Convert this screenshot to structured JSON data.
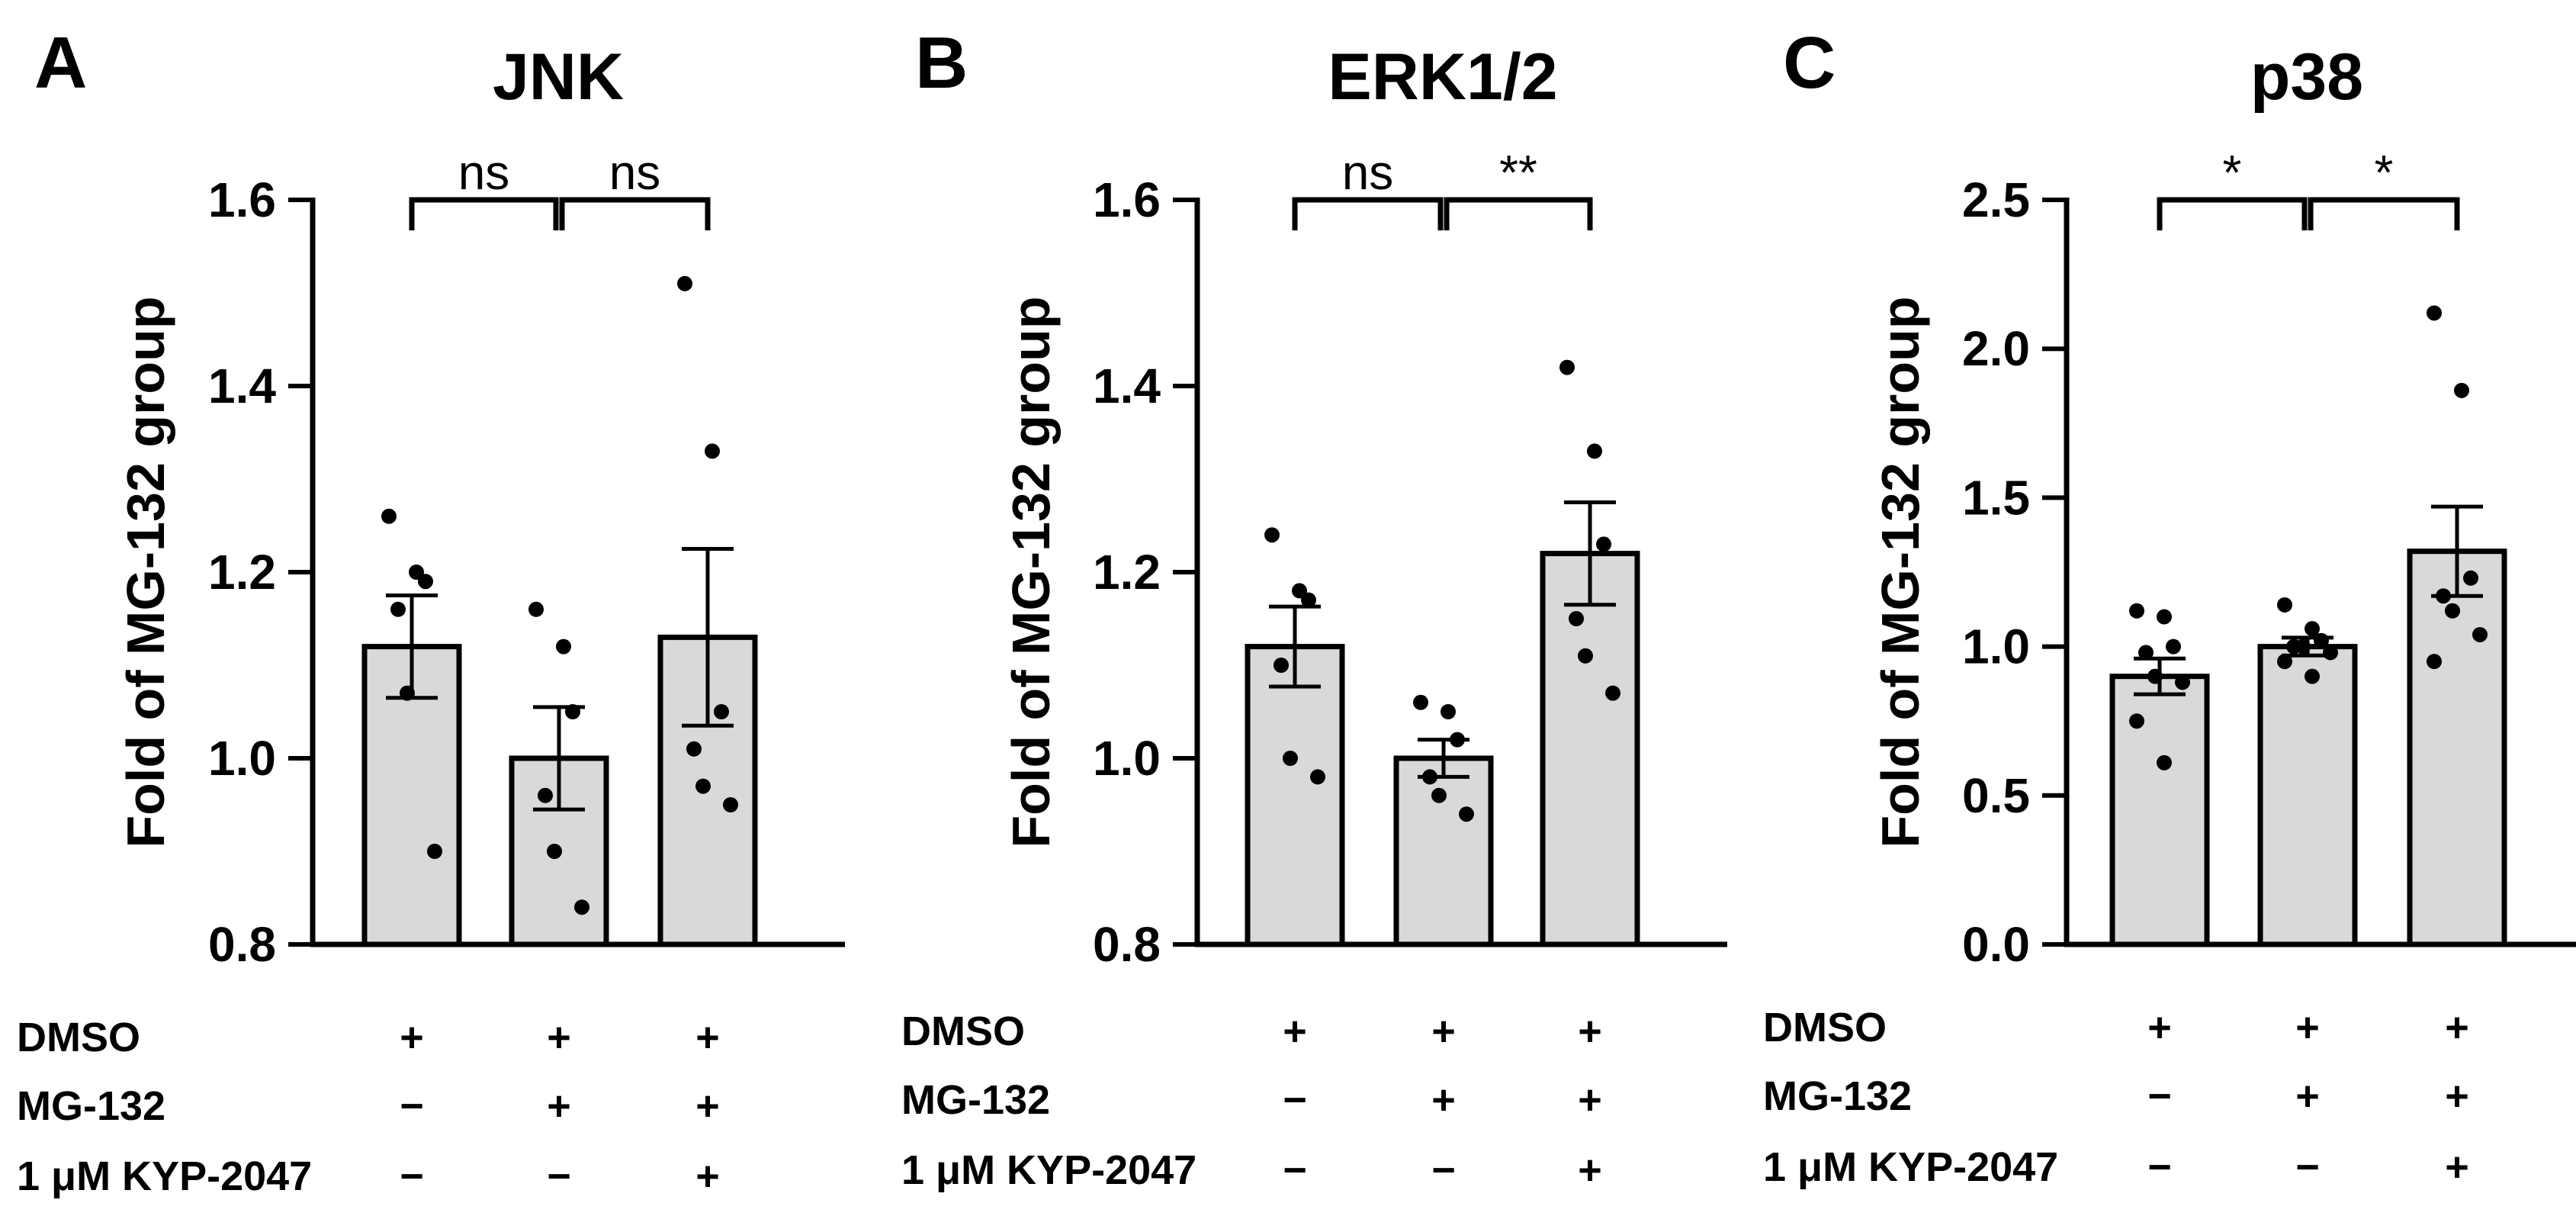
{
  "chart_data": [
    {
      "panel": "A",
      "type": "bar",
      "title": "JNK",
      "ylabel": "Fold of MG-132 group",
      "xlabel": "",
      "ylim": [
        0.8,
        1.6
      ],
      "yticks": [
        0.8,
        1.0,
        1.2,
        1.4,
        1.6
      ],
      "ytick_labels": [
        "0.8",
        "1.0",
        "1.2",
        "1.4",
        "1.6"
      ],
      "bars": [
        {
          "mean": 1.12,
          "sem": 0.055,
          "points": [
            1.26,
            1.2,
            1.19,
            1.16,
            1.07,
            0.9
          ]
        },
        {
          "mean": 1.0,
          "sem": 0.055,
          "points": [
            1.16,
            1.12,
            1.05,
            0.96,
            0.9,
            0.84
          ]
        },
        {
          "mean": 1.13,
          "sem": 0.095,
          "points": [
            1.51,
            1.33,
            1.05,
            1.01,
            0.97,
            0.95
          ]
        }
      ],
      "significance": [
        {
          "from": 0,
          "to": 1,
          "label": "ns"
        },
        {
          "from": 1,
          "to": 2,
          "label": "ns"
        }
      ],
      "conditions": [
        {
          "label": "DMSO",
          "signs": [
            "+",
            "+",
            "+"
          ]
        },
        {
          "label": "MG-132",
          "signs": [
            "−",
            "+",
            "+"
          ]
        },
        {
          "label": "1 μM KYP-2047",
          "signs": [
            "−",
            "−",
            "+"
          ]
        }
      ]
    },
    {
      "panel": "B",
      "type": "bar",
      "title": "ERK1/2",
      "ylabel": "Fold of MG-132 group",
      "xlabel": "",
      "ylim": [
        0.8,
        1.6
      ],
      "yticks": [
        0.8,
        1.0,
        1.2,
        1.4,
        1.6
      ],
      "ytick_labels": [
        "0.8",
        "1.0",
        "1.2",
        "1.4",
        "1.6"
      ],
      "bars": [
        {
          "mean": 1.12,
          "sem": 0.043,
          "points": [
            1.24,
            1.18,
            1.17,
            1.1,
            1.0,
            0.98
          ]
        },
        {
          "mean": 1.0,
          "sem": 0.02,
          "points": [
            1.06,
            1.05,
            1.02,
            0.98,
            0.96,
            0.94
          ]
        },
        {
          "mean": 1.22,
          "sem": 0.055,
          "points": [
            1.42,
            1.33,
            1.23,
            1.15,
            1.11,
            1.07
          ]
        }
      ],
      "significance": [
        {
          "from": 0,
          "to": 1,
          "label": "ns"
        },
        {
          "from": 1,
          "to": 2,
          "label": "**"
        }
      ],
      "conditions": [
        {
          "label": "DMSO",
          "signs": [
            "+",
            "+",
            "+"
          ]
        },
        {
          "label": "MG-132",
          "signs": [
            "−",
            "+",
            "+"
          ]
        },
        {
          "label": "1 μM KYP-2047",
          "signs": [
            "−",
            "−",
            "+"
          ]
        }
      ]
    },
    {
      "panel": "C",
      "type": "bar",
      "title": "p38",
      "ylabel": "Fold of MG-132 group",
      "xlabel": "",
      "ylim": [
        0.0,
        2.5
      ],
      "yticks": [
        0.0,
        0.5,
        1.0,
        1.5,
        2.0,
        2.5
      ],
      "ytick_labels": [
        "0.0",
        "0.5",
        "1.0",
        "1.5",
        "2.0",
        "2.5"
      ],
      "bars": [
        {
          "mean": 0.9,
          "sem": 0.06,
          "points": [
            1.12,
            1.1,
            1.0,
            0.98,
            0.9,
            0.88,
            0.75,
            0.61
          ]
        },
        {
          "mean": 1.0,
          "sem": 0.03,
          "points": [
            1.14,
            1.06,
            1.02,
            1.0,
            1.0,
            0.98,
            0.95,
            0.9
          ]
        },
        {
          "mean": 1.32,
          "sem": 0.15,
          "points": [
            2.12,
            1.86,
            1.23,
            1.17,
            1.12,
            1.04,
            0.95
          ]
        }
      ],
      "significance": [
        {
          "from": 0,
          "to": 1,
          "label": "*"
        },
        {
          "from": 1,
          "to": 2,
          "label": "*"
        }
      ],
      "conditions": [
        {
          "label": "DMSO",
          "signs": [
            "+",
            "+",
            "+"
          ]
        },
        {
          "label": "MG-132",
          "signs": [
            "−",
            "+",
            "+"
          ]
        },
        {
          "label": "1 μM KYP-2047",
          "signs": [
            "−",
            "−",
            "+"
          ]
        }
      ]
    }
  ],
  "style": {
    "bar_fill": "#d9d9d9",
    "stroke": "#000000",
    "background": "#ffffff"
  }
}
